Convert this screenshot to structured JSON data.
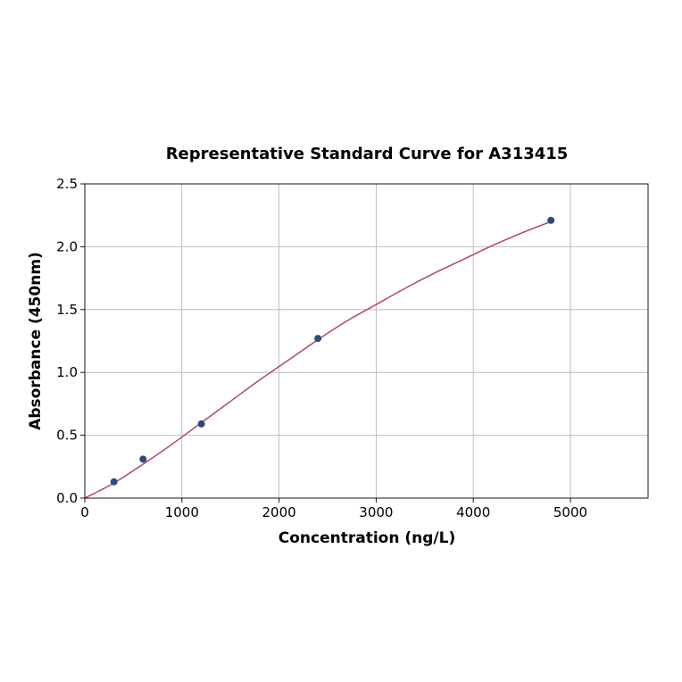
{
  "chart_data": {
    "type": "scatter",
    "title": "Representative Standard Curve for A313415",
    "xlabel": "Concentration (ng/L)",
    "ylabel": "Absorbance (450nm)",
    "xlim": [
      0,
      5800
    ],
    "ylim": [
      0,
      2.5
    ],
    "xticks": [
      "0",
      "1000",
      "2000",
      "3000",
      "4000",
      "5000"
    ],
    "xtick_values": [
      0,
      1000,
      2000,
      3000,
      4000,
      5000
    ],
    "yticks": [
      "0.0",
      "0.5",
      "1.0",
      "1.5",
      "2.0",
      "2.5"
    ],
    "ytick_values": [
      0,
      0.5,
      1.0,
      1.5,
      2.0,
      2.5
    ],
    "grid": true,
    "points": {
      "x": [
        300,
        600,
        1200,
        2400,
        4800
      ],
      "y": [
        0.13,
        0.31,
        0.59,
        1.27,
        2.21
      ],
      "color": "#2e4a7a"
    },
    "fit_curve": {
      "x": [
        0,
        300,
        600,
        900,
        1200,
        1500,
        1800,
        2100,
        2400,
        2700,
        3000,
        3300,
        3600,
        3900,
        4200,
        4500,
        4800
      ],
      "y": [
        0.0,
        0.12,
        0.27,
        0.43,
        0.6,
        0.77,
        0.94,
        1.1,
        1.26,
        1.41,
        1.54,
        1.67,
        1.79,
        1.9,
        2.01,
        2.11,
        2.2
      ],
      "color": "#b5446e"
    }
  }
}
